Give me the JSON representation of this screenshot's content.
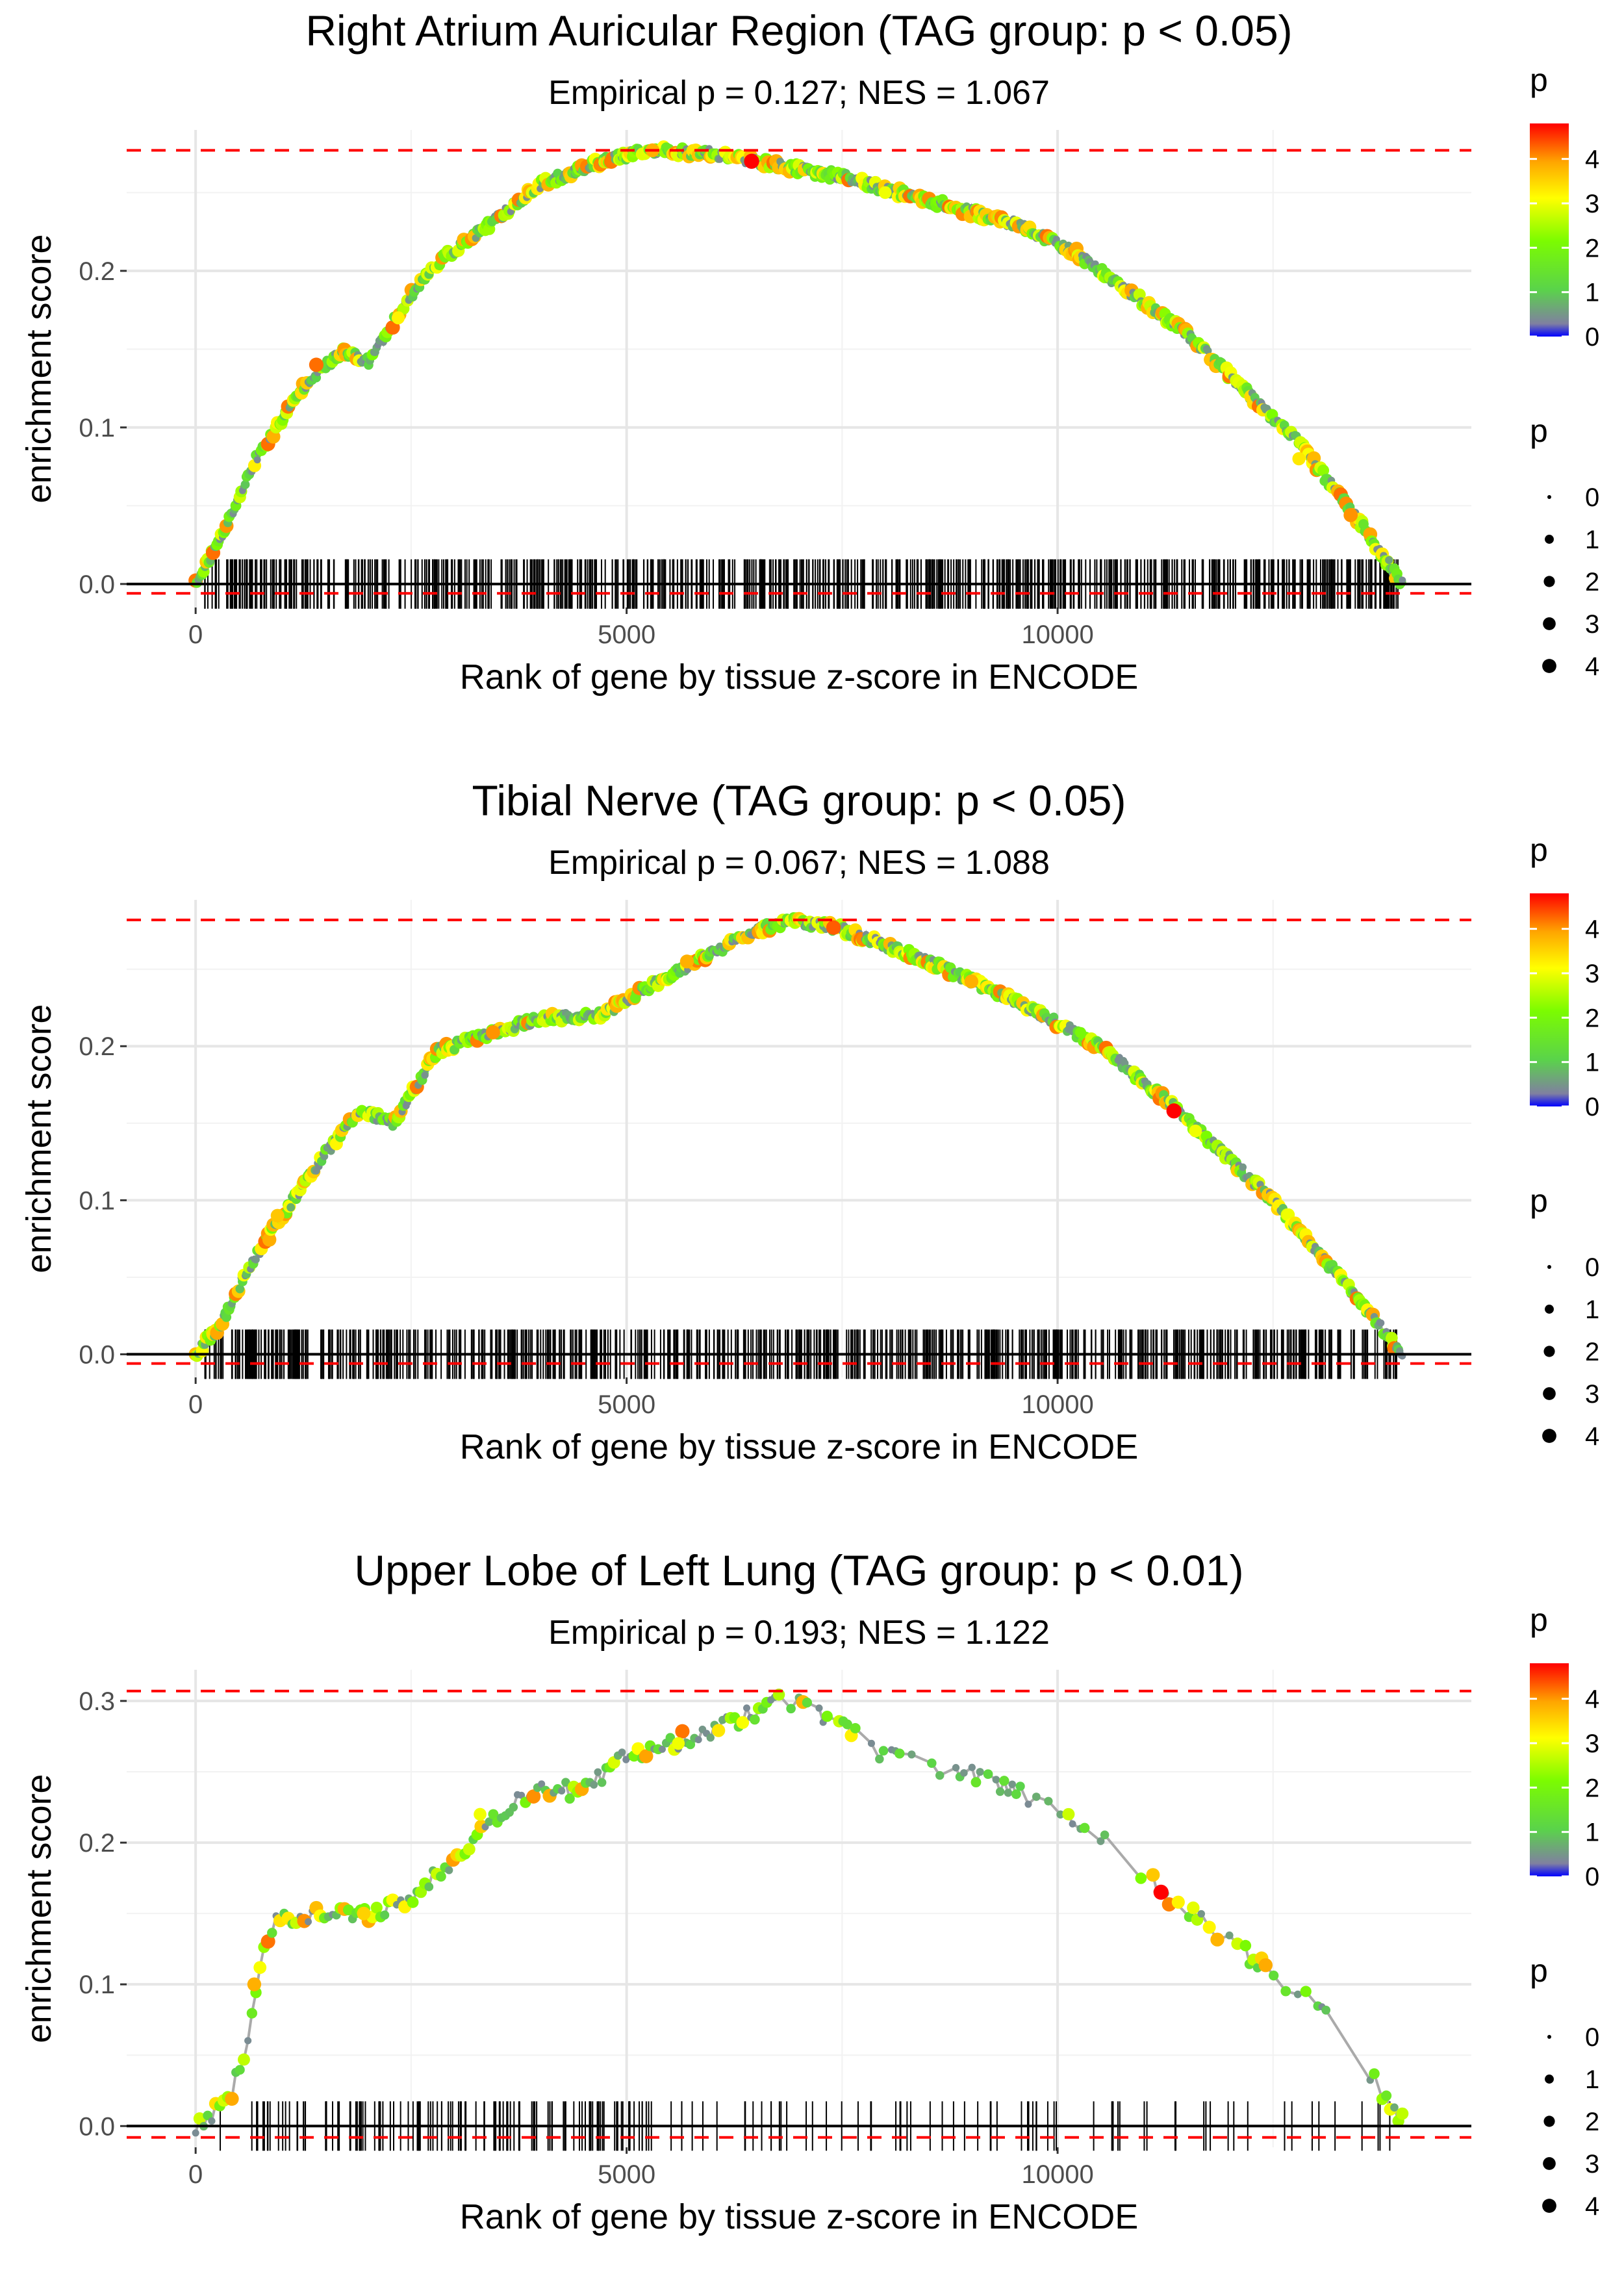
{
  "chart_data": [
    {
      "type": "line",
      "title": "Right Atrium Auricular Region (TAG group: p < 0.05)",
      "subtitle": "Empirical p = 0.127; NES = 1.067",
      "xlabel": "Rank of gene by tissue z-score in ENCODE",
      "ylabel": "enrichment score",
      "x_ticks": [
        "0",
        "5000",
        "10000"
      ],
      "y_ticks": [
        "0.0",
        "0.1",
        "0.2"
      ],
      "xlim": [
        -800,
        14800
      ],
      "ylim": [
        -0.015,
        0.29
      ],
      "max_es": 0.277,
      "min_es": -0.006,
      "n_genes": 14000,
      "seed": 11,
      "profile": [
        [
          0,
          0.0
        ],
        [
          300,
          0.03
        ],
        [
          700,
          0.08
        ],
        [
          1300,
          0.13
        ],
        [
          1700,
          0.148
        ],
        [
          2000,
          0.142
        ],
        [
          2500,
          0.185
        ],
        [
          2800,
          0.205
        ],
        [
          3300,
          0.225
        ],
        [
          4000,
          0.255
        ],
        [
          4700,
          0.27
        ],
        [
          5300,
          0.277
        ],
        [
          6000,
          0.275
        ],
        [
          6500,
          0.27
        ],
        [
          7500,
          0.26
        ],
        [
          8500,
          0.245
        ],
        [
          9500,
          0.23
        ],
        [
          10200,
          0.212
        ],
        [
          11500,
          0.16
        ],
        [
          12800,
          0.09
        ],
        [
          13500,
          0.04
        ],
        [
          14000,
          0.0
        ]
      ],
      "markers": [
        [
          1400,
          0.14,
          4.2
        ],
        [
          2350,
          0.17,
          3.2
        ],
        [
          5300,
          0.277,
          3.8
        ],
        [
          6450,
          0.27,
          4.8
        ],
        [
          8000,
          0.25,
          3.0
        ],
        [
          12800,
          0.08,
          3.3
        ],
        [
          13400,
          0.044,
          4.0
        ]
      ],
      "sparse": false
    },
    {
      "type": "line",
      "title": "Tibial Nerve (TAG group: p < 0.05)",
      "subtitle": "Empirical p = 0.067; NES = 1.088",
      "xlabel": "Rank of gene by tissue z-score in ENCODE",
      "ylabel": "enrichment score",
      "x_ticks": [
        "0",
        "5000",
        "10000"
      ],
      "y_ticks": [
        "0.0",
        "0.1",
        "0.2"
      ],
      "xlim": [
        -800,
        14800
      ],
      "ylim": [
        -0.015,
        0.295
      ],
      "max_es": 0.282,
      "min_es": -0.006,
      "n_genes": 14000,
      "seed": 23,
      "profile": [
        [
          0,
          0.0
        ],
        [
          300,
          0.02
        ],
        [
          600,
          0.055
        ],
        [
          1000,
          0.09
        ],
        [
          1500,
          0.13
        ],
        [
          1900,
          0.158
        ],
        [
          2300,
          0.15
        ],
        [
          2800,
          0.197
        ],
        [
          3400,
          0.208
        ],
        [
          4000,
          0.218
        ],
        [
          4700,
          0.22
        ],
        [
          5300,
          0.24
        ],
        [
          5800,
          0.255
        ],
        [
          6500,
          0.275
        ],
        [
          6900,
          0.282
        ],
        [
          7500,
          0.276
        ],
        [
          8500,
          0.255
        ],
        [
          9500,
          0.23
        ],
        [
          10500,
          0.2
        ],
        [
          11400,
          0.158
        ],
        [
          12500,
          0.1
        ],
        [
          13500,
          0.035
        ],
        [
          14000,
          0.0
        ]
      ],
      "markers": [
        [
          950,
          0.09,
          3.6
        ],
        [
          3450,
          0.209,
          4.0
        ],
        [
          5700,
          0.255,
          3.8
        ],
        [
          7400,
          0.277,
          4.3
        ],
        [
          9000,
          0.242,
          3.8
        ],
        [
          11350,
          0.158,
          4.8
        ],
        [
          11600,
          0.145,
          3.0
        ]
      ],
      "sparse": false
    },
    {
      "type": "line",
      "title": "Upper Lobe of Left Lung (TAG group: p < 0.01)",
      "subtitle": "Empirical p = 0.193; NES = 1.122",
      "xlabel": "Rank of gene by tissue z-score in ENCODE",
      "ylabel": "enrichment score",
      "x_ticks": [
        "0",
        "5000",
        "10000"
      ],
      "y_ticks": [
        "0.0",
        "0.1",
        "0.2",
        "0.3"
      ],
      "xlim": [
        -800,
        14800
      ],
      "ylim": [
        -0.015,
        0.322
      ],
      "max_es": 0.307,
      "min_es": -0.008,
      "n_genes": 14000,
      "seed": 37,
      "profile": [
        [
          0,
          0.0
        ],
        [
          400,
          0.02
        ],
        [
          600,
          0.06
        ],
        [
          700,
          0.1
        ],
        [
          900,
          0.145
        ],
        [
          1300,
          0.15
        ],
        [
          1900,
          0.148
        ],
        [
          2500,
          0.16
        ],
        [
          3000,
          0.19
        ],
        [
          3500,
          0.22
        ],
        [
          4000,
          0.24
        ],
        [
          4500,
          0.235
        ],
        [
          5000,
          0.262
        ],
        [
          5500,
          0.27
        ],
        [
          6000,
          0.28
        ],
        [
          6600,
          0.295
        ],
        [
          6700,
          0.305
        ],
        [
          7100,
          0.295
        ],
        [
          7400,
          0.285
        ],
        [
          8000,
          0.262
        ],
        [
          9000,
          0.248
        ],
        [
          10000,
          0.225
        ],
        [
          10500,
          0.205
        ],
        [
          11300,
          0.162
        ],
        [
          12000,
          0.13
        ],
        [
          13000,
          0.085
        ],
        [
          14000,
          0.005
        ]
      ],
      "markers": [
        [
          680,
          0.1,
          3.8
        ],
        [
          1950,
          0.15,
          3.5
        ],
        [
          11200,
          0.165,
          4.8
        ],
        [
          11400,
          0.158,
          3.2
        ],
        [
          3300,
          0.22,
          3.0
        ],
        [
          5600,
          0.27,
          3.0
        ]
      ],
      "sparse": true
    }
  ],
  "legend": {
    "color_title": "p",
    "color_ticks": [
      "0",
      "1",
      "2",
      "3",
      "4"
    ],
    "size_title": "p",
    "size_ticks": [
      "0",
      "1",
      "2",
      "3",
      "4"
    ]
  }
}
